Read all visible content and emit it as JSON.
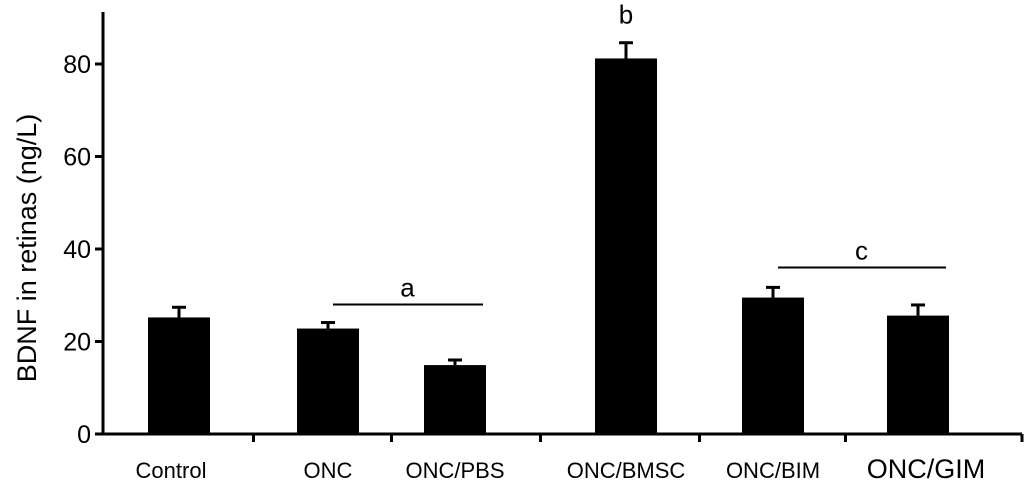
{
  "chart_data": {
    "type": "bar",
    "title": "",
    "xlabel": "",
    "ylabel": "BDNF in retinas (ng/L)",
    "ylim": [
      0,
      90
    ],
    "yticks": [
      0,
      20,
      40,
      60,
      80
    ],
    "categories": [
      "Control",
      "ONC",
      "ONC/PBS",
      "ONC/BMSC",
      "ONC/BIM",
      "ONC/GIM"
    ],
    "values": [
      25.2,
      22.8,
      14.9,
      81.2,
      29.5,
      25.6
    ],
    "errors": [
      2.2,
      1.3,
      1.1,
      3.4,
      2.2,
      2.3
    ],
    "bar_color": "#000000",
    "grid": false,
    "annotations": [
      {
        "label": "a",
        "from": "ONC",
        "to": "ONC/PBS",
        "y": 28
      },
      {
        "label": "b",
        "from": "ONC/BMSC",
        "to": "ONC/BMSC",
        "y": 87
      },
      {
        "label": "c",
        "from": "ONC/BIM",
        "to": "ONC/GIM",
        "y": 36
      }
    ]
  }
}
